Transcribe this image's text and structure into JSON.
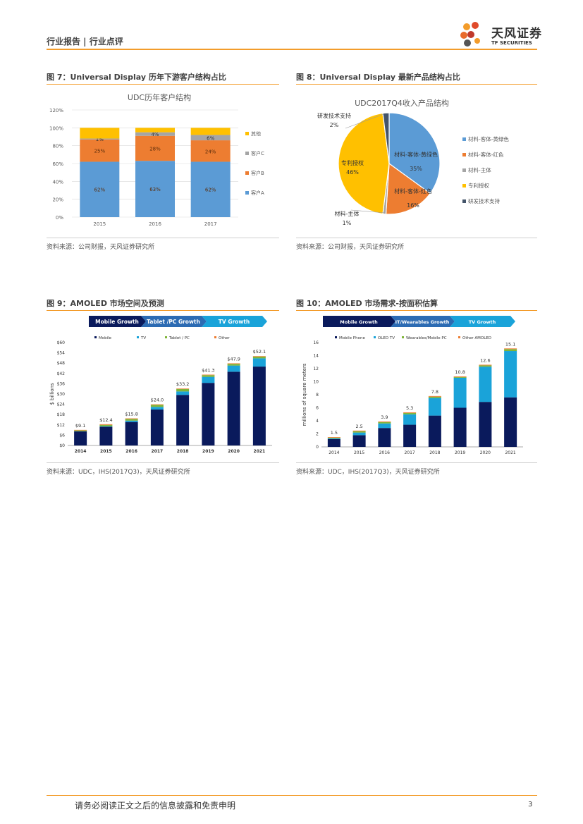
{
  "header": {
    "category": "行业报告 | 行业点评"
  },
  "logo": {
    "name_cn": "天风证券",
    "name_en": "TF SECURITIES"
  },
  "figures": {
    "fig7": {
      "title": "图 7：Universal Display 历年下游客户结构占比",
      "source": "资料来源：公司财报，天风证券研究所"
    },
    "fig8": {
      "title": "图 8：Universal Display 最新产品结构占比",
      "source": "资料来源：公司财报，天风证券研究所"
    },
    "fig9": {
      "title": "图 9：AMOLED 市场空间及预测",
      "source": "资料来源：UDC，IHS(2017Q3)，天风证券研究所"
    },
    "fig10": {
      "title": "图 10：AMOLED 市场需求-按面积估算",
      "source": "资料来源：UDC，IHS(2017Q3)，天风证券研究所"
    }
  },
  "footer": {
    "disclaimer": "请务必阅读正文之后的信息披露和免责申明",
    "page": "3"
  },
  "colors": {
    "accent": "#f39c2b",
    "navy": "#0a1a5c",
    "cyan": "#1aa3d9",
    "green": "#7fb539",
    "blue": "#5b9bd5",
    "orange": "#ed7d31",
    "gray": "#a5a5a5",
    "gold": "#ffc000",
    "darkblue": "#44546a"
  },
  "chart_data": [
    {
      "id": "fig7",
      "type": "bar",
      "stacked": true,
      "title": "UDC历年客户结构",
      "categories": [
        "2015",
        "2016",
        "2017"
      ],
      "ylim": [
        0,
        120
      ],
      "yticks": [
        "0%",
        "20%",
        "40%",
        "60%",
        "80%",
        "100%",
        "120%"
      ],
      "series": [
        {
          "name": "客户A",
          "values": [
            62,
            63,
            62
          ],
          "labels": [
            "62%",
            "63%",
            "62%"
          ]
        },
        {
          "name": "客户B",
          "values": [
            25,
            28,
            24
          ],
          "labels": [
            "25%",
            "28%",
            "24%"
          ]
        },
        {
          "name": "客户C",
          "values": [
            1,
            4,
            6
          ],
          "labels": [
            "1%",
            "4%",
            "6%"
          ]
        },
        {
          "name": "其他",
          "values": [
            12,
            5,
            8
          ]
        }
      ],
      "legend": [
        "其他",
        "客户C",
        "客户B",
        "客户A"
      ]
    },
    {
      "id": "fig8",
      "type": "pie",
      "title": "UDC2017Q4收入产品结构",
      "slices": [
        {
          "name": "材料-客体-黄绿色",
          "value": 35,
          "label": "材料-客体-黄绿色",
          "pct": "35%"
        },
        {
          "name": "材料-客体-红色",
          "value": 16,
          "label": "材料-客体-红色",
          "pct": "16%"
        },
        {
          "name": "材料-主体",
          "value": 1,
          "label": "材料-主体",
          "pct": "1%"
        },
        {
          "name": "专利授权",
          "value": 46,
          "label": "专利授权",
          "pct": "46%"
        },
        {
          "name": "研发技术支持",
          "value": 2,
          "label": "研发技术支持",
          "pct": "2%"
        }
      ]
    },
    {
      "id": "fig9",
      "type": "bar",
      "stacked": true,
      "phases": [
        "Mobile Growth",
        "Tablet /PC Growth",
        "TV Growth"
      ],
      "legend": [
        "Mobile",
        "TV",
        "Tablet / PC",
        "Other"
      ],
      "categories": [
        "2014",
        "2015",
        "2016",
        "2017",
        "2018",
        "2019",
        "2020",
        "2021"
      ],
      "ylabel": "$ billions",
      "ylim": [
        0,
        60
      ],
      "yticks": [
        "$0",
        "$6",
        "$12",
        "$18",
        "$24",
        "$30",
        "$36",
        "$42",
        "$48",
        "$54",
        "$60"
      ],
      "totals": [
        9.1,
        12.4,
        15.8,
        24.0,
        33.2,
        41.3,
        47.9,
        52.1
      ],
      "total_labels": [
        "$9.1",
        "$12.4",
        "$15.8",
        "$24.0",
        "$33.2",
        "$41.3",
        "$47.9",
        "$52.1"
      ],
      "series": [
        {
          "name": "Mobile",
          "values": [
            8.2,
            10.9,
            13.7,
            21.0,
            29.5,
            36.5,
            43.0,
            46.0
          ]
        },
        {
          "name": "TV",
          "values": [
            0.1,
            0.3,
            0.8,
            1.5,
            2.0,
            3.5,
            3.6,
            4.8
          ]
        },
        {
          "name": "Tablet / PC",
          "values": [
            0.5,
            0.8,
            1.0,
            1.2,
            1.4,
            1.0,
            1.0,
            1.0
          ]
        },
        {
          "name": "Other",
          "values": [
            0.3,
            0.4,
            0.3,
            0.3,
            0.3,
            0.3,
            0.3,
            0.3
          ]
        }
      ]
    },
    {
      "id": "fig10",
      "type": "bar",
      "stacked": true,
      "phases": [
        "Mobile Growth",
        "IT/Wearables Growth",
        "TV Growth"
      ],
      "legend": [
        "Mobile Phone",
        "OLED TV",
        "Wearables/Mobile PC",
        "Other AMOLED"
      ],
      "categories": [
        "2014",
        "2015",
        "2016",
        "2017",
        "2018",
        "2019",
        "2020",
        "2021"
      ],
      "ylabel": "millions of square meters",
      "ylim": [
        0,
        16
      ],
      "yticks": [
        "0",
        "2",
        "4",
        "6",
        "8",
        "10",
        "12",
        "14",
        "16"
      ],
      "totals": [
        1.5,
        2.5,
        3.9,
        5.3,
        7.8,
        10.8,
        12.6,
        15.1
      ],
      "total_labels": [
        "1.5",
        "2.5",
        "3.9",
        "5.3",
        "7.8",
        "10.8",
        "12.6",
        "15.1"
      ],
      "series": [
        {
          "name": "Mobile Phone",
          "values": [
            1.2,
            1.8,
            2.9,
            3.4,
            4.8,
            6.0,
            6.9,
            7.6
          ]
        },
        {
          "name": "OLED TV",
          "values": [
            0.1,
            0.4,
            0.7,
            1.6,
            2.7,
            4.6,
            5.4,
            7.1
          ]
        },
        {
          "name": "Wearables/Mobile PC",
          "values": [
            0.1,
            0.2,
            0.2,
            0.2,
            0.2,
            0.1,
            0.2,
            0.3
          ]
        },
        {
          "name": "Other AMOLED",
          "values": [
            0.1,
            0.1,
            0.1,
            0.1,
            0.1,
            0.1,
            0.1,
            0.1
          ]
        }
      ]
    }
  ]
}
